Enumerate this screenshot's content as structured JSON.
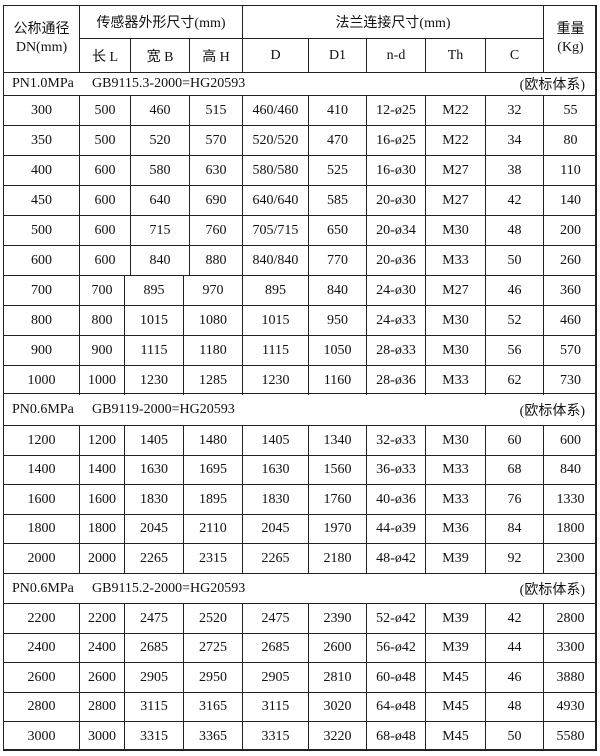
{
  "header": {
    "dn_line1": "公称通径",
    "dn_line2": "DN(mm)",
    "sensor_group": "传感器外形尺寸(mm)",
    "flange_group": "法兰连接尺寸(mm)",
    "weight_line1": "重量",
    "weight_line2": "(Kg)",
    "columns": [
      "长 L",
      "宽 B",
      "高 H",
      "D",
      "D1",
      "n-d",
      "Th",
      "C"
    ],
    "nd_subscript": "0"
  },
  "sections": [
    {
      "pressure": "PN1.0MPa",
      "standard": "GB9115.3-2000=HG20593",
      "system": "(欧标体系)",
      "rows": [
        [
          "300",
          "500",
          "460",
          "515",
          "460/460",
          "410",
          "12-ø25",
          "M22",
          "32",
          "55"
        ],
        [
          "350",
          "500",
          "520",
          "570",
          "520/520",
          "470",
          "16-ø25",
          "M22",
          "34",
          "80"
        ],
        [
          "400",
          "600",
          "580",
          "630",
          "580/580",
          "525",
          "16-ø30",
          "M27",
          "38",
          "110"
        ],
        [
          "450",
          "600",
          "640",
          "690",
          "640/640",
          "585",
          "20-ø30",
          "M27",
          "42",
          "140"
        ],
        [
          "500",
          "600",
          "715",
          "760",
          "705/715",
          "650",
          "20-ø34",
          "M30",
          "48",
          "200"
        ],
        [
          "600",
          "600",
          "840",
          "880",
          "840/840",
          "770",
          "20-ø36",
          "M33",
          "50",
          "260"
        ],
        [
          "700",
          "700",
          "895",
          "970",
          "895",
          "840",
          "24-ø30",
          "M27",
          "46",
          "360"
        ],
        [
          "800",
          "800",
          "1015",
          "1080",
          "1015",
          "950",
          "24-ø33",
          "M30",
          "52",
          "460"
        ],
        [
          "900",
          "900",
          "1115",
          "1180",
          "1115",
          "1050",
          "28-ø33",
          "M30",
          "56",
          "570"
        ],
        [
          "1000",
          "1000",
          "1230",
          "1285",
          "1230",
          "1160",
          "28-ø36",
          "M33",
          "62",
          "730"
        ]
      ]
    },
    {
      "pressure": "PN0.6MPa",
      "standard": "GB9119-2000=HG20593",
      "system": "(欧标体系)",
      "rows": [
        [
          "1200",
          "1200",
          "1405",
          "1480",
          "1405",
          "1340",
          "32-ø33",
          "M30",
          "60",
          "600"
        ],
        [
          "1400",
          "1400",
          "1630",
          "1695",
          "1630",
          "1560",
          "36-ø33",
          "M33",
          "68",
          "840"
        ],
        [
          "1600",
          "1600",
          "1830",
          "1895",
          "1830",
          "1760",
          "40-ø36",
          "M33",
          "76",
          "1330"
        ],
        [
          "1800",
          "1800",
          "2045",
          "2110",
          "2045",
          "1970",
          "44-ø39",
          "M36",
          "84",
          "1800"
        ],
        [
          "2000",
          "2000",
          "2265",
          "2315",
          "2265",
          "2180",
          "48-ø42",
          "M39",
          "92",
          "2300"
        ]
      ]
    },
    {
      "pressure": "PN0.6MPa",
      "standard": "GB9115.2-2000=HG20593",
      "system": "(欧标体系)",
      "rows": [
        [
          "2200",
          "2200",
          "2475",
          "2520",
          "2475",
          "2390",
          "52-ø42",
          "M39",
          "42",
          "2800"
        ],
        [
          "2400",
          "2400",
          "2685",
          "2725",
          "2685",
          "2600",
          "56-ø42",
          "M39",
          "44",
          "3300"
        ],
        [
          "2600",
          "2600",
          "2905",
          "2950",
          "2905",
          "2810",
          "60-ø48",
          "M45",
          "46",
          "3880"
        ],
        [
          "2800",
          "2800",
          "3115",
          "3165",
          "3115",
          "3020",
          "64-ø48",
          "M45",
          "48",
          "4930"
        ],
        [
          "3000",
          "3000",
          "3315",
          "3365",
          "3315",
          "3220",
          "68-ø48",
          "M45",
          "50",
          "5580"
        ]
      ]
    }
  ]
}
